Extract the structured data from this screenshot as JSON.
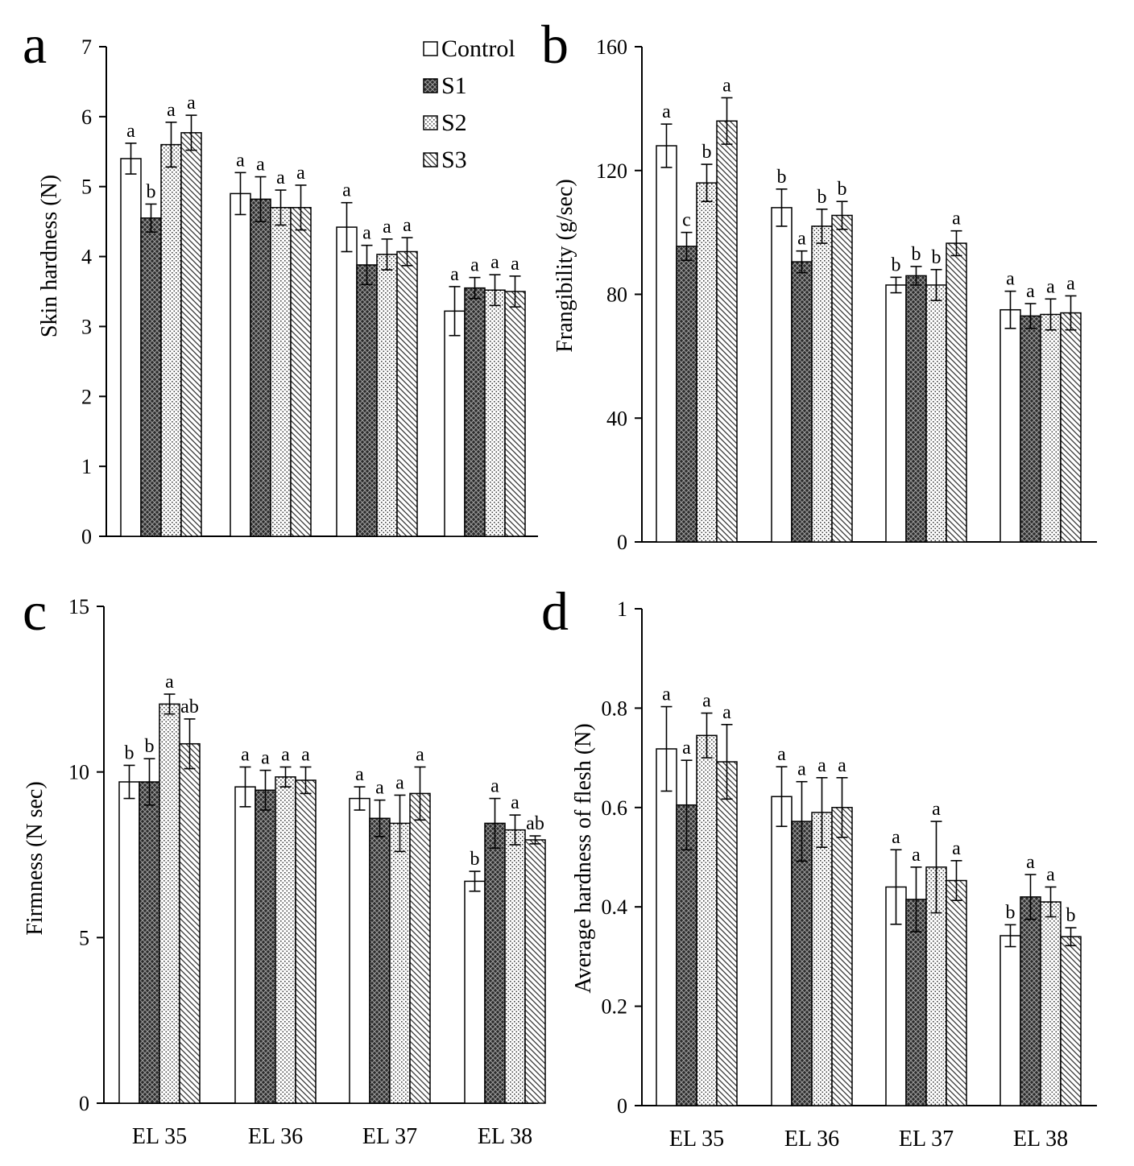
{
  "figure": {
    "legend": [
      "Control",
      "S1",
      "S2",
      "S3"
    ]
  },
  "chart_data": [
    {
      "panel": "a",
      "type": "bar",
      "categories": [
        "EL 35",
        "EL 36",
        "EL 37",
        "EL 38"
      ],
      "ylabel": "Skin hardness (N)",
      "ylim": [
        0,
        7
      ],
      "yticks": [
        0,
        1,
        2,
        3,
        4,
        5,
        6,
        7
      ],
      "show_category_labels": false,
      "legend": "top-right",
      "series": [
        {
          "name": "Control",
          "values": [
            5.4,
            4.9,
            4.42,
            3.22
          ],
          "errors": [
            0.22,
            0.3,
            0.35,
            0.35
          ],
          "letters": [
            "a",
            "a",
            "a",
            "a"
          ]
        },
        {
          "name": "S1",
          "values": [
            4.55,
            4.82,
            3.88,
            3.55
          ],
          "errors": [
            0.2,
            0.32,
            0.28,
            0.15
          ],
          "letters": [
            "b",
            "a",
            "a",
            "a"
          ]
        },
        {
          "name": "S2",
          "values": [
            5.6,
            4.7,
            4.03,
            3.52
          ],
          "errors": [
            0.32,
            0.25,
            0.22,
            0.22
          ],
          "letters": [
            "a",
            "a",
            "a",
            "a"
          ]
        },
        {
          "name": "S3",
          "values": [
            5.77,
            4.7,
            4.07,
            3.5
          ],
          "errors": [
            0.25,
            0.32,
            0.2,
            0.22
          ],
          "letters": [
            "a",
            "a",
            "a",
            "a"
          ]
        }
      ]
    },
    {
      "panel": "b",
      "type": "bar",
      "categories": [
        "EL 35",
        "EL 36",
        "EL 37",
        "EL 38"
      ],
      "ylabel": "Frangibility (g/sec)",
      "ylim": [
        0,
        160
      ],
      "yticks": [
        0,
        40,
        80,
        120,
        160
      ],
      "show_category_labels": false,
      "series": [
        {
          "name": "Control",
          "values": [
            128,
            108,
            83,
            75
          ],
          "errors": [
            7,
            6,
            2.5,
            6
          ],
          "letters": [
            "a",
            "b",
            "b",
            "a"
          ]
        },
        {
          "name": "S1",
          "values": [
            95.5,
            90.5,
            86,
            73
          ],
          "errors": [
            4.5,
            3.5,
            3,
            4
          ],
          "letters": [
            "c",
            "a",
            "b",
            "a"
          ]
        },
        {
          "name": "S2",
          "values": [
            116,
            102,
            83,
            73.5
          ],
          "errors": [
            6,
            5.5,
            5,
            5
          ],
          "letters": [
            "b",
            "b",
            "b",
            "a"
          ]
        },
        {
          "name": "S3",
          "values": [
            136,
            105.5,
            96.5,
            74
          ],
          "errors": [
            7.5,
            4.5,
            4,
            5.5
          ],
          "letters": [
            "a",
            "b",
            "a",
            "a"
          ]
        }
      ]
    },
    {
      "panel": "c",
      "type": "bar",
      "categories": [
        "EL 35",
        "EL 36",
        "EL 37",
        "EL 38"
      ],
      "ylabel": "Firmness (N sec)",
      "ylim": [
        0,
        15
      ],
      "yticks": [
        0,
        5,
        10,
        15
      ],
      "show_category_labels": true,
      "series": [
        {
          "name": "Control",
          "values": [
            9.7,
            9.55,
            9.2,
            6.7
          ],
          "errors": [
            0.5,
            0.6,
            0.35,
            0.3
          ],
          "letters": [
            "b",
            "a",
            "a",
            "b"
          ]
        },
        {
          "name": "S1",
          "values": [
            9.7,
            9.45,
            8.6,
            8.45
          ],
          "errors": [
            0.7,
            0.6,
            0.55,
            0.75
          ],
          "letters": [
            "b",
            "a",
            "a",
            "a"
          ]
        },
        {
          "name": "S2",
          "values": [
            12.05,
            9.85,
            8.45,
            8.25
          ],
          "errors": [
            0.3,
            0.3,
            0.85,
            0.45
          ],
          "letters": [
            "a",
            "a",
            "a",
            "a"
          ]
        },
        {
          "name": "S3",
          "values": [
            10.85,
            9.75,
            9.35,
            7.95
          ],
          "errors": [
            0.75,
            0.4,
            0.8,
            0.12
          ],
          "letters": [
            "ab",
            "a",
            "a",
            "ab"
          ]
        }
      ]
    },
    {
      "panel": "d",
      "type": "bar",
      "categories": [
        "EL 35",
        "EL 36",
        "EL 37",
        "EL 38"
      ],
      "ylabel": "Average hardness of flesh (N)",
      "ylim": [
        0,
        1
      ],
      "yticks": [
        0,
        0.2,
        0.4,
        0.6,
        0.8,
        1
      ],
      "show_category_labels": true,
      "series": [
        {
          "name": "Control",
          "values": [
            0.718,
            0.622,
            0.44,
            0.342
          ],
          "errors": [
            0.085,
            0.06,
            0.075,
            0.022
          ],
          "letters": [
            "a",
            "a",
            "a",
            "b"
          ]
        },
        {
          "name": "S1",
          "values": [
            0.605,
            0.572,
            0.415,
            0.42
          ],
          "errors": [
            0.09,
            0.08,
            0.065,
            0.045
          ],
          "letters": [
            "a",
            "a",
            "a",
            "a"
          ]
        },
        {
          "name": "S2",
          "values": [
            0.745,
            0.59,
            0.48,
            0.41
          ],
          "errors": [
            0.045,
            0.07,
            0.092,
            0.03
          ],
          "letters": [
            "a",
            "a",
            "a",
            "a"
          ]
        },
        {
          "name": "S3",
          "values": [
            0.692,
            0.6,
            0.453,
            0.34
          ],
          "errors": [
            0.075,
            0.06,
            0.04,
            0.018
          ],
          "letters": [
            "a",
            "a",
            "a",
            "b"
          ]
        }
      ]
    }
  ]
}
